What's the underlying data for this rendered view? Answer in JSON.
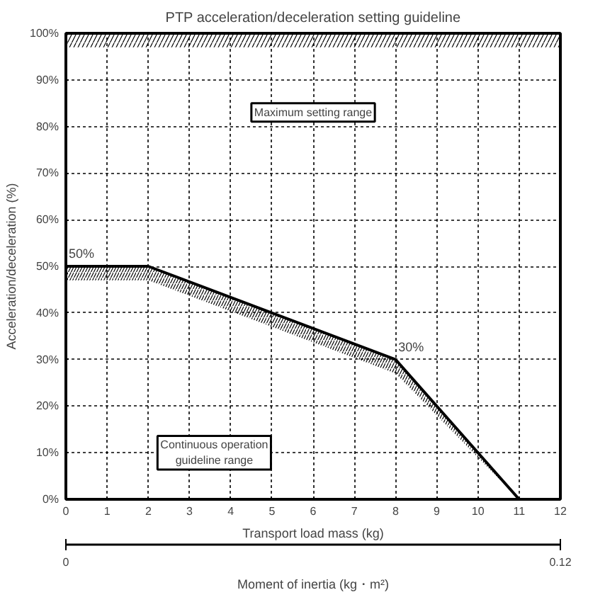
{
  "chart_data": {
    "type": "line",
    "title": "PTP acceleration/deceleration setting guideline",
    "xlabel": "Transport load mass (kg)",
    "ylabel": "Acceleration/deceleration (%)",
    "x2label": "Moment of inertia (kg・m²)",
    "x2lim": [
      0,
      0.12
    ],
    "x2ticks": [
      0,
      0.12
    ],
    "xlim": [
      0,
      12
    ],
    "xticks": [
      0,
      1,
      2,
      3,
      4,
      5,
      6,
      7,
      8,
      9,
      10,
      11,
      12
    ],
    "ylim": [
      0,
      100
    ],
    "yticks": [
      {
        "value": 0,
        "label": "0%"
      },
      {
        "value": 10,
        "label": "10%"
      },
      {
        "value": 20,
        "label": "20%"
      },
      {
        "value": 30,
        "label": "30%"
      },
      {
        "value": 40,
        "label": "40%"
      },
      {
        "value": 50,
        "label": "50%"
      },
      {
        "value": 60,
        "label": "60%"
      },
      {
        "value": 70,
        "label": "70%"
      },
      {
        "value": 80,
        "label": "80%"
      },
      {
        "value": 90,
        "label": "90%"
      },
      {
        "value": 100,
        "label": "100%"
      }
    ],
    "x": [
      0,
      2,
      8,
      11
    ],
    "series": [
      {
        "color": "#000000",
        "values": [
          50,
          50,
          30,
          0
        ],
        "lower": [
          47,
          47,
          27,
          0
        ],
        "upper": [
          50,
          50,
          30,
          0
        ]
      }
    ],
    "bands": [
      {
        "axis": "y",
        "from": 97,
        "to": 100,
        "color": "#000000"
      }
    ],
    "annotations": [
      {
        "text": "50%",
        "x": 0,
        "y": 50
      },
      {
        "text": "30%",
        "x": 8,
        "y": 30
      },
      "Maximum setting range",
      "Continuous operation\nguideline range"
    ],
    "grid": true,
    "line_style": "solid",
    "marker": "none"
  }
}
